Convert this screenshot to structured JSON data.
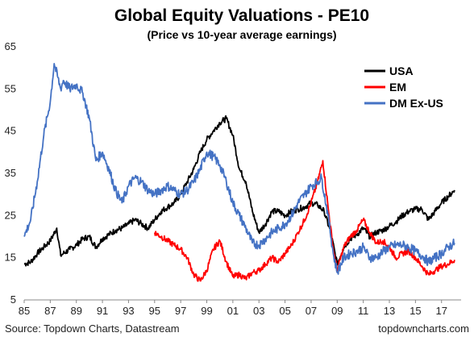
{
  "source_note": "Source: Topdown Charts, Datastream",
  "watermark": "topdowncharts.com",
  "chart_data": {
    "type": "line",
    "title": "Global Equity Valuations - PE10",
    "subtitle": "(Price vs 10-year average earnings)",
    "xlabel": "",
    "ylabel": "",
    "xlim": [
      1985,
      2018.5
    ],
    "ylim": [
      5,
      65
    ],
    "y_ticks": [
      5,
      15,
      25,
      35,
      45,
      55,
      65
    ],
    "x_ticks": [
      {
        "year": 1985,
        "label": "85"
      },
      {
        "year": 1987,
        "label": "87"
      },
      {
        "year": 1989,
        "label": "89"
      },
      {
        "year": 1991,
        "label": "91"
      },
      {
        "year": 1993,
        "label": "93"
      },
      {
        "year": 1995,
        "label": "95"
      },
      {
        "year": 1997,
        "label": "97"
      },
      {
        "year": 1999,
        "label": "99"
      },
      {
        "year": 2001,
        "label": "01"
      },
      {
        "year": 2003,
        "label": "03"
      },
      {
        "year": 2005,
        "label": "05"
      },
      {
        "year": 2007,
        "label": "07"
      },
      {
        "year": 2009,
        "label": "09"
      },
      {
        "year": 2011,
        "label": "11"
      },
      {
        "year": 2013,
        "label": "13"
      },
      {
        "year": 2015,
        "label": "15"
      },
      {
        "year": 2017,
        "label": "17"
      }
    ],
    "grid": false,
    "legend": "top-right",
    "series": [
      {
        "name": "USA",
        "color": "#000000",
        "points": [
          [
            1985.0,
            13.5
          ],
          [
            1985.5,
            14.0
          ],
          [
            1986.0,
            16.0
          ],
          [
            1986.5,
            17.5
          ],
          [
            1987.0,
            19.0
          ],
          [
            1987.5,
            22.0
          ],
          [
            1987.8,
            15.5
          ],
          [
            1988.0,
            16.0
          ],
          [
            1988.5,
            17.0
          ],
          [
            1989.0,
            18.0
          ],
          [
            1989.5,
            19.5
          ],
          [
            1990.0,
            20.0
          ],
          [
            1990.5,
            17.5
          ],
          [
            1991.0,
            19.5
          ],
          [
            1991.5,
            20.5
          ],
          [
            1992.0,
            21.5
          ],
          [
            1992.5,
            22.0
          ],
          [
            1993.0,
            23.0
          ],
          [
            1993.5,
            24.0
          ],
          [
            1994.0,
            23.0
          ],
          [
            1994.5,
            22.0
          ],
          [
            1995.0,
            24.0
          ],
          [
            1995.5,
            26.0
          ],
          [
            1996.0,
            27.0
          ],
          [
            1996.5,
            28.0
          ],
          [
            1997.0,
            30.0
          ],
          [
            1997.5,
            33.0
          ],
          [
            1998.0,
            36.0
          ],
          [
            1998.5,
            40.0
          ],
          [
            1999.0,
            43.0
          ],
          [
            1999.5,
            45.0
          ],
          [
            2000.0,
            47.0
          ],
          [
            2000.5,
            48.0
          ],
          [
            2001.0,
            44.0
          ],
          [
            2001.5,
            36.0
          ],
          [
            2002.0,
            33.0
          ],
          [
            2002.5,
            26.0
          ],
          [
            2003.0,
            21.0
          ],
          [
            2003.5,
            23.0
          ],
          [
            2004.0,
            26.0
          ],
          [
            2004.5,
            26.0
          ],
          [
            2005.0,
            25.0
          ],
          [
            2005.5,
            26.0
          ],
          [
            2006.0,
            26.5
          ],
          [
            2006.5,
            27.0
          ],
          [
            2007.0,
            28.0
          ],
          [
            2007.5,
            27.5
          ],
          [
            2008.0,
            26.0
          ],
          [
            2008.5,
            21.0
          ],
          [
            2009.0,
            13.5
          ],
          [
            2009.5,
            17.5
          ],
          [
            2010.0,
            19.5
          ],
          [
            2010.5,
            20.5
          ],
          [
            2011.0,
            22.0
          ],
          [
            2011.5,
            20.0
          ],
          [
            2012.0,
            21.0
          ],
          [
            2012.5,
            21.5
          ],
          [
            2013.0,
            22.5
          ],
          [
            2013.5,
            23.5
          ],
          [
            2014.0,
            25.0
          ],
          [
            2014.5,
            26.0
          ],
          [
            2015.0,
            26.5
          ],
          [
            2015.5,
            26.5
          ],
          [
            2016.0,
            24.0
          ],
          [
            2016.5,
            26.0
          ],
          [
            2017.0,
            28.0
          ],
          [
            2017.5,
            29.5
          ],
          [
            2018.0,
            31.0
          ]
        ]
      },
      {
        "name": "EM",
        "color": "#ff0000",
        "points": [
          [
            1995.0,
            21.0
          ],
          [
            1995.5,
            20.0
          ],
          [
            1996.0,
            19.0
          ],
          [
            1996.5,
            18.0
          ],
          [
            1997.0,
            17.0
          ],
          [
            1997.5,
            15.0
          ],
          [
            1998.0,
            11.0
          ],
          [
            1998.5,
            9.5
          ],
          [
            1999.0,
            12.0
          ],
          [
            1999.5,
            17.0
          ],
          [
            2000.0,
            19.0
          ],
          [
            2000.5,
            14.0
          ],
          [
            2001.0,
            10.5
          ],
          [
            2001.5,
            11.0
          ],
          [
            2002.0,
            10.0
          ],
          [
            2002.5,
            11.5
          ],
          [
            2003.0,
            12.0
          ],
          [
            2003.5,
            13.5
          ],
          [
            2004.0,
            15.0
          ],
          [
            2004.5,
            14.0
          ],
          [
            2005.0,
            16.0
          ],
          [
            2005.5,
            18.0
          ],
          [
            2006.0,
            21.0
          ],
          [
            2006.5,
            24.0
          ],
          [
            2007.0,
            28.0
          ],
          [
            2007.5,
            33.0
          ],
          [
            2007.9,
            38.0
          ],
          [
            2008.3,
            27.0
          ],
          [
            2008.7,
            17.0
          ],
          [
            2009.0,
            12.0
          ],
          [
            2009.5,
            17.5
          ],
          [
            2010.0,
            20.0
          ],
          [
            2010.5,
            21.5
          ],
          [
            2011.0,
            24.0
          ],
          [
            2011.5,
            21.0
          ],
          [
            2012.0,
            18.5
          ],
          [
            2012.5,
            19.0
          ],
          [
            2013.0,
            17.5
          ],
          [
            2013.5,
            15.0
          ],
          [
            2014.0,
            16.0
          ],
          [
            2014.5,
            16.5
          ],
          [
            2015.0,
            15.0
          ],
          [
            2015.5,
            13.0
          ],
          [
            2016.0,
            11.0
          ],
          [
            2016.5,
            12.0
          ],
          [
            2017.0,
            13.0
          ],
          [
            2017.5,
            13.5
          ],
          [
            2018.0,
            14.5
          ]
        ]
      },
      {
        "name": "DM Ex-US",
        "color": "#4472c4",
        "points": [
          [
            1985.0,
            20.0
          ],
          [
            1985.5,
            24.0
          ],
          [
            1986.0,
            33.0
          ],
          [
            1986.5,
            44.0
          ],
          [
            1987.0,
            52.0
          ],
          [
            1987.3,
            61.0
          ],
          [
            1987.8,
            55.0
          ],
          [
            1988.0,
            57.0
          ],
          [
            1988.5,
            55.0
          ],
          [
            1989.0,
            56.0
          ],
          [
            1989.5,
            54.0
          ],
          [
            1990.0,
            48.0
          ],
          [
            1990.5,
            38.0
          ],
          [
            1991.0,
            40.0
          ],
          [
            1991.5,
            36.0
          ],
          [
            1992.0,
            31.0
          ],
          [
            1992.5,
            28.0
          ],
          [
            1993.0,
            32.0
          ],
          [
            1993.5,
            34.0
          ],
          [
            1994.0,
            33.0
          ],
          [
            1994.5,
            31.0
          ],
          [
            1995.0,
            30.0
          ],
          [
            1995.5,
            31.0
          ],
          [
            1996.0,
            32.0
          ],
          [
            1996.5,
            31.0
          ],
          [
            1997.0,
            30.0
          ],
          [
            1997.5,
            31.0
          ],
          [
            1998.0,
            33.0
          ],
          [
            1998.5,
            36.0
          ],
          [
            1999.0,
            40.0
          ],
          [
            1999.5,
            39.0
          ],
          [
            2000.0,
            37.0
          ],
          [
            2000.5,
            33.0
          ],
          [
            2001.0,
            28.0
          ],
          [
            2001.5,
            25.0
          ],
          [
            2002.0,
            22.0
          ],
          [
            2002.5,
            18.5
          ],
          [
            2003.0,
            18.0
          ],
          [
            2003.5,
            19.5
          ],
          [
            2004.0,
            21.0
          ],
          [
            2004.5,
            22.0
          ],
          [
            2005.0,
            23.0
          ],
          [
            2005.5,
            25.0
          ],
          [
            2006.0,
            28.0
          ],
          [
            2006.5,
            30.0
          ],
          [
            2007.0,
            32.0
          ],
          [
            2007.5,
            33.0
          ],
          [
            2007.8,
            34.0
          ],
          [
            2008.3,
            25.0
          ],
          [
            2008.7,
            16.0
          ],
          [
            2009.0,
            11.5
          ],
          [
            2009.5,
            15.0
          ],
          [
            2010.0,
            16.0
          ],
          [
            2010.5,
            16.5
          ],
          [
            2011.0,
            17.5
          ],
          [
            2011.5,
            15.0
          ],
          [
            2012.0,
            15.0
          ],
          [
            2012.5,
            16.5
          ],
          [
            2013.0,
            17.5
          ],
          [
            2013.5,
            18.0
          ],
          [
            2014.0,
            18.0
          ],
          [
            2014.5,
            17.5
          ],
          [
            2015.0,
            16.5
          ],
          [
            2015.5,
            15.5
          ],
          [
            2016.0,
            14.0
          ],
          [
            2016.5,
            15.0
          ],
          [
            2017.0,
            16.0
          ],
          [
            2017.5,
            17.5
          ],
          [
            2018.0,
            18.5
          ]
        ]
      }
    ]
  }
}
